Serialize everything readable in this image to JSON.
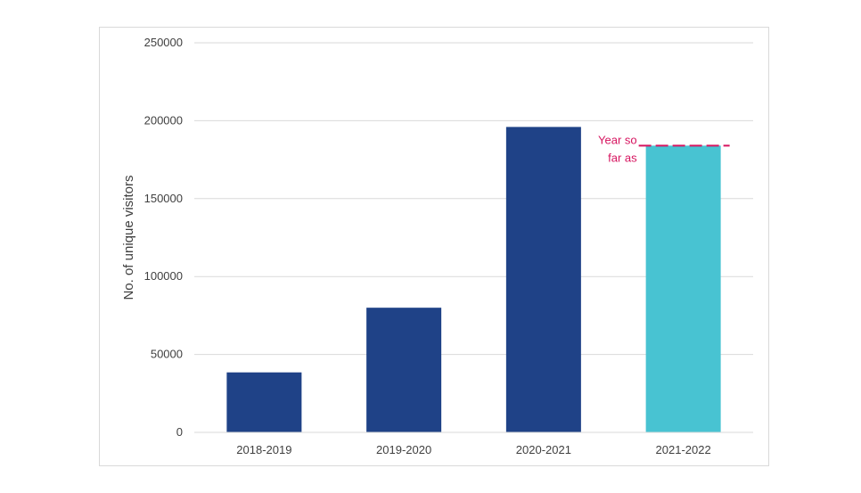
{
  "chart_data": {
    "type": "bar",
    "title": "",
    "xlabel": "",
    "ylabel": "No. of unique visitors",
    "ylim": [
      0,
      250000
    ],
    "yticks": [
      0,
      50000,
      100000,
      150000,
      200000,
      250000
    ],
    "yticks_labels": [
      "0",
      "50000",
      "100000",
      "150000",
      "200000",
      "250000"
    ],
    "grid": true,
    "legend": "none",
    "categories": [
      "2018-2019",
      "2019-2020",
      "2020-2021",
      "2021-2022"
    ],
    "values": [
      38500,
      80000,
      196000,
      184000
    ],
    "bar_colors": [
      "#1f4287",
      "#1f4287",
      "#1f4287",
      "#48c3d2"
    ],
    "annotation": {
      "lines": [
        "Year so",
        "far as"
      ],
      "color": "#d6145f",
      "target_category": "2021-2022",
      "value": 184000,
      "style": "dashed"
    }
  }
}
